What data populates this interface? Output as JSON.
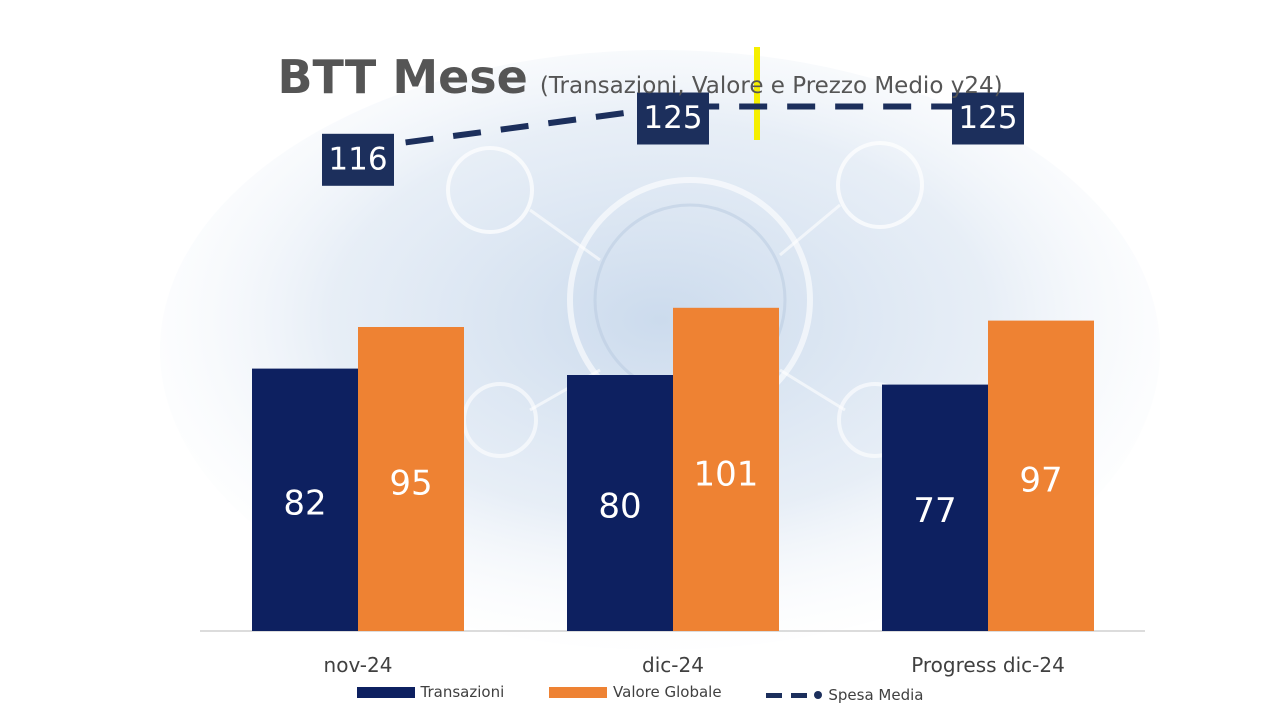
{
  "title": "BTT Mese",
  "subtitle": "(Transazioni, Valore e Prezzo Medio y24)",
  "colors": {
    "transazioni": "#0d2060",
    "valore_globale": "#ee8233",
    "spesa_media": "#1c2f5c",
    "axis": "#d0d0d0",
    "label_text": "#ffffff",
    "title_text": "#555555"
  },
  "legend": {
    "transazioni": "Transazioni",
    "valore_globale": "Valore Globale",
    "spesa_media": "Spesa Media"
  },
  "chart_data": {
    "type": "bar",
    "categories": [
      "nov-24",
      "dic-24",
      "Progress dic-24"
    ],
    "series": [
      {
        "name": "Transazioni",
        "type": "bar",
        "values": [
          82,
          80,
          77
        ]
      },
      {
        "name": "Valore Globale",
        "type": "bar",
        "values": [
          95,
          101,
          97
        ]
      },
      {
        "name": "Spesa Media",
        "type": "line",
        "style": "dashed",
        "values": [
          116,
          125,
          125
        ]
      }
    ],
    "legend_position": "bottom",
    "grid": false
  }
}
